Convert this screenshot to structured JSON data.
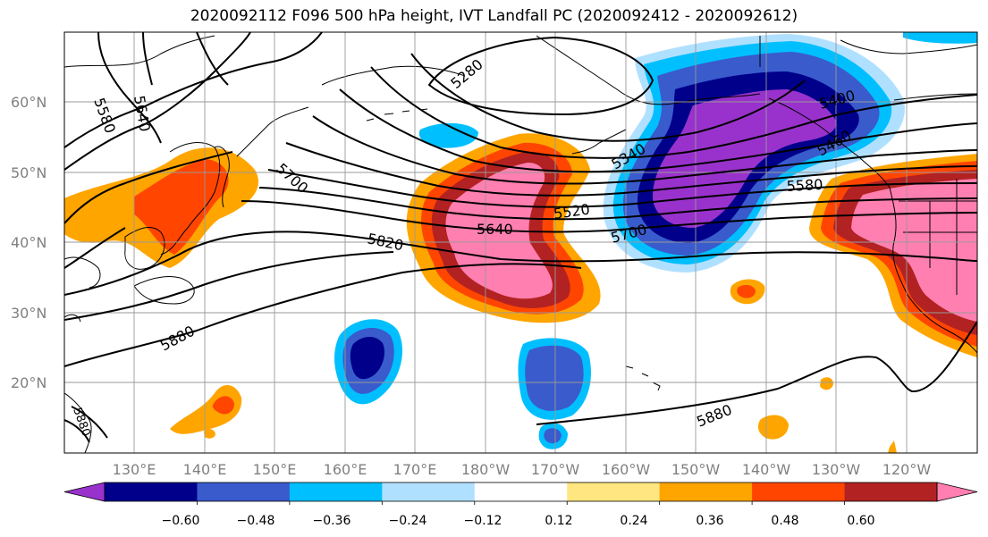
{
  "title": "2020092112 F096 500 hPa height, IVT Landfall PC (2020092412 - 2020092612)",
  "map": {
    "lat_labels": [
      "60°N",
      "50°N",
      "40°N",
      "30°N",
      "20°N"
    ],
    "lon_labels": [
      "130°E",
      "140°E",
      "150°E",
      "160°E",
      "170°E",
      "180°W",
      "170°W",
      "160°W",
      "150°W",
      "140°W",
      "130°W",
      "120°W"
    ],
    "contour_labels": [
      "5580",
      "5640",
      "5280",
      "5700",
      "5340",
      "5400",
      "5460",
      "5580",
      "5520",
      "5640",
      "5820",
      "5700",
      "5880",
      "5880",
      "5880"
    ],
    "contour_unit_levels_m": [
      5280,
      5340,
      5400,
      5460,
      5520,
      5580,
      5640,
      5700,
      5760,
      5820,
      5880
    ]
  },
  "colorbar": {
    "tick_labels": [
      "−0.60",
      "−0.48",
      "−0.36",
      "−0.24",
      "−0.12",
      "0.12",
      "0.24",
      "0.36",
      "0.48",
      "0.60"
    ],
    "colors": [
      "#9932cc",
      "#00008b",
      "#3a5bcc",
      "#00bfff",
      "#b0e0ff",
      "#ffffff",
      "#ffe680",
      "#ffa500",
      "#ff4500",
      "#b22222",
      "#ff7fb0"
    ]
  }
}
